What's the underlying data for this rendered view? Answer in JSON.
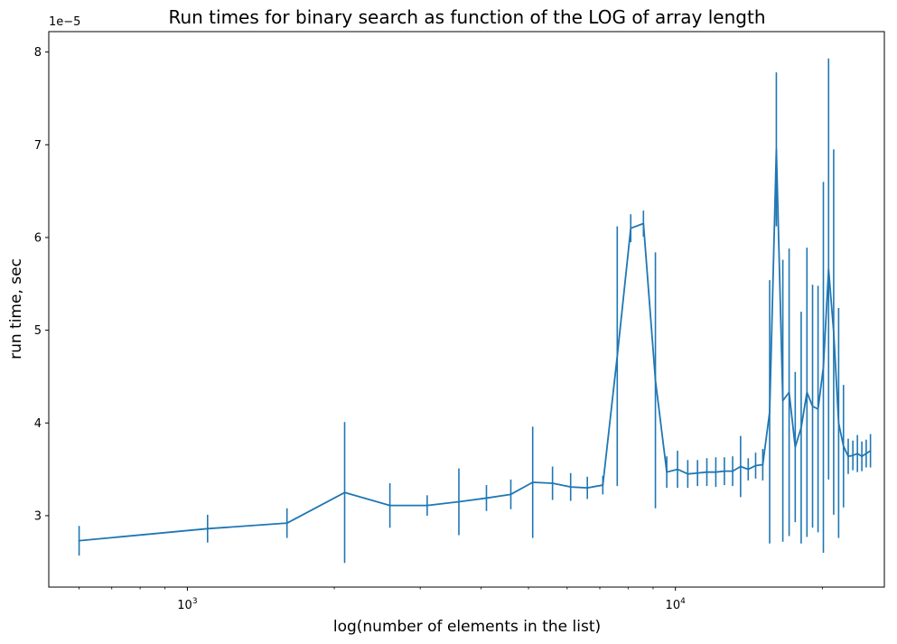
{
  "chart_data": {
    "type": "line",
    "title": "Run times for binary search as function of the LOG of array length",
    "xlabel": "log(number of elements in the list)",
    "ylabel": "run time, sec",
    "x_scale": "log",
    "xlim": [
      520,
      26800
    ],
    "ylim": [
      2.23e-05,
      8.22e-05
    ],
    "y_offset_label": "1e−5",
    "x_ticks": [
      {
        "value": 1000,
        "base": "10",
        "exp": "3"
      },
      {
        "value": 10000,
        "base": "10",
        "exp": "4"
      }
    ],
    "y_ticks": [
      {
        "value": 3e-05,
        "label": "3"
      },
      {
        "value": 4e-05,
        "label": "4"
      },
      {
        "value": 5e-05,
        "label": "5"
      },
      {
        "value": 6e-05,
        "label": "6"
      },
      {
        "value": 7e-05,
        "label": "7"
      },
      {
        "value": 8e-05,
        "label": "8"
      }
    ],
    "grid": false,
    "color": "#1f77b4",
    "series": [
      {
        "error_bars": true,
        "points": [
          {
            "x": 600,
            "y": 2.73e-05,
            "err": 1.6e-06
          },
          {
            "x": 1100,
            "y": 2.86e-05,
            "err": 1.5e-06
          },
          {
            "x": 1600,
            "y": 2.92e-05,
            "err": 1.6e-06
          },
          {
            "x": 2100,
            "y": 3.25e-05,
            "err": 7.6e-06
          },
          {
            "x": 2600,
            "y": 3.11e-05,
            "err": 2.4e-06
          },
          {
            "x": 3100,
            "y": 3.11e-05,
            "err": 1.1e-06
          },
          {
            "x": 3600,
            "y": 3.15e-05,
            "err": 3.6e-06
          },
          {
            "x": 4100,
            "y": 3.19e-05,
            "err": 1.4e-06
          },
          {
            "x": 4600,
            "y": 3.23e-05,
            "err": 1.6e-06
          },
          {
            "x": 5100,
            "y": 3.36e-05,
            "err": 6e-06
          },
          {
            "x": 5600,
            "y": 3.35e-05,
            "err": 1.8e-06
          },
          {
            "x": 6100,
            "y": 3.31e-05,
            "err": 1.5e-06
          },
          {
            "x": 6600,
            "y": 3.3e-05,
            "err": 1.2e-06
          },
          {
            "x": 7100,
            "y": 3.33e-05,
            "err": 1e-06
          },
          {
            "x": 7600,
            "y": 4.72e-05,
            "err": 1.4e-05
          },
          {
            "x": 8100,
            "y": 6.1e-05,
            "err": 1.5e-06
          },
          {
            "x": 8600,
            "y": 6.15e-05,
            "err": 1.4e-06
          },
          {
            "x": 9100,
            "y": 4.46e-05,
            "err": 1.38e-05
          },
          {
            "x": 9600,
            "y": 3.47e-05,
            "err": 1.7e-06
          },
          {
            "x": 10100,
            "y": 3.5e-05,
            "err": 2e-06
          },
          {
            "x": 10600,
            "y": 3.45e-05,
            "err": 1.5e-06
          },
          {
            "x": 11100,
            "y": 3.46e-05,
            "err": 1.4e-06
          },
          {
            "x": 11600,
            "y": 3.47e-05,
            "err": 1.5e-06
          },
          {
            "x": 12100,
            "y": 3.47e-05,
            "err": 1.6e-06
          },
          {
            "x": 12600,
            "y": 3.48e-05,
            "err": 1.5e-06
          },
          {
            "x": 13100,
            "y": 3.48e-05,
            "err": 1.6e-06
          },
          {
            "x": 13600,
            "y": 3.53e-05,
            "err": 3.3e-06
          },
          {
            "x": 14100,
            "y": 3.5e-05,
            "err": 1.2e-06
          },
          {
            "x": 14600,
            "y": 3.54e-05,
            "err": 1.4e-06
          },
          {
            "x": 15100,
            "y": 3.55e-05,
            "err": 1.7e-06
          },
          {
            "x": 15600,
            "y": 4.12e-05,
            "err": 1.42e-05
          },
          {
            "x": 16100,
            "y": 6.95e-05,
            "err": 8.3e-06
          },
          {
            "x": 16600,
            "y": 4.24e-05,
            "err": 1.52e-05
          },
          {
            "x": 17100,
            "y": 4.33e-05,
            "err": 1.55e-05
          },
          {
            "x": 17600,
            "y": 3.74e-05,
            "err": 8.1e-06
          },
          {
            "x": 18100,
            "y": 3.95e-05,
            "err": 1.25e-05
          },
          {
            "x": 18600,
            "y": 4.33e-05,
            "err": 1.56e-05
          },
          {
            "x": 19100,
            "y": 4.18e-05,
            "err": 1.31e-05
          },
          {
            "x": 19600,
            "y": 4.15e-05,
            "err": 1.33e-05
          },
          {
            "x": 20100,
            "y": 4.6e-05,
            "err": 2e-05
          },
          {
            "x": 20600,
            "y": 5.66e-05,
            "err": 2.27e-05
          },
          {
            "x": 21100,
            "y": 4.98e-05,
            "err": 1.97e-05
          },
          {
            "x": 21600,
            "y": 4e-05,
            "err": 1.24e-05
          },
          {
            "x": 22100,
            "y": 3.75e-05,
            "err": 6.6e-06
          },
          {
            "x": 22600,
            "y": 3.64e-05,
            "err": 1.9e-06
          },
          {
            "x": 23100,
            "y": 3.65e-05,
            "err": 1.6e-06
          },
          {
            "x": 23600,
            "y": 3.67e-05,
            "err": 2e-06
          },
          {
            "x": 24100,
            "y": 3.64e-05,
            "err": 1.6e-06
          },
          {
            "x": 24600,
            "y": 3.67e-05,
            "err": 1.5e-06
          },
          {
            "x": 25100,
            "y": 3.7e-05,
            "err": 1.8e-06
          }
        ]
      }
    ]
  }
}
